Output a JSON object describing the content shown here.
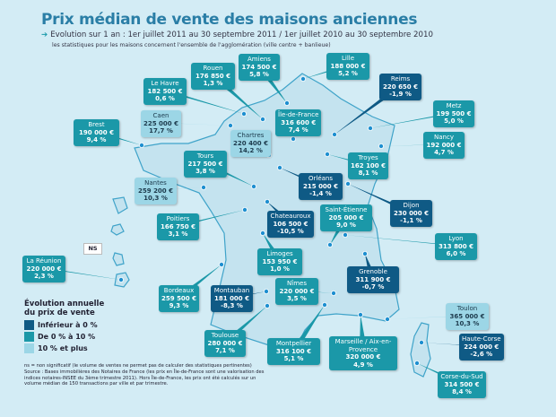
{
  "header": {
    "title": "Prix médian de vente des maisons anciennes",
    "subtitle": "Evolution sur 1 an : 1er juillet 2011 au 30 septembre 2011 / 1er juillet 2010 au 30 septembre 2010",
    "subtitle2": "les statistiques pour les maisons concernent l'ensemble de l'agglomération (ville centre + banlieue)"
  },
  "colors": {
    "negative": "#0f5a85",
    "low": "#1b98a8",
    "high": "#9cd6e6",
    "background": "#d3ecf5"
  },
  "cities": [
    {
      "name": "Lille",
      "price": "188 000 €",
      "change": "5,2 %",
      "category": "low"
    },
    {
      "name": "Amiens",
      "price": "174 500 €",
      "change": "5,8 %",
      "category": "low"
    },
    {
      "name": "Rouen",
      "price": "176 850 €",
      "change": "1,3 %",
      "category": "low"
    },
    {
      "name": "Le Havre",
      "price": "182 500 €",
      "change": "0,6 %",
      "category": "low"
    },
    {
      "name": "Caen",
      "price": "225 000 €",
      "change": "17,7 %",
      "category": "high"
    },
    {
      "name": "Brest",
      "price": "190 000 €",
      "change": "9,4 %",
      "category": "low"
    },
    {
      "name": "Chartres",
      "price": "220 400 €",
      "change": "14,2 %",
      "category": "high"
    },
    {
      "name": "Île-de-France",
      "price": "316 600 €",
      "change": "7,4 %",
      "category": "low"
    },
    {
      "name": "Tours",
      "price": "217 500 €",
      "change": "3,8 %",
      "category": "low"
    },
    {
      "name": "Reims",
      "price": "220 650 €",
      "change": "-1,9 %",
      "category": "neg"
    },
    {
      "name": "Metz",
      "price": "199 500 €",
      "change": "5,0 %",
      "category": "low"
    },
    {
      "name": "Nancy",
      "price": "192 000 €",
      "change": "4,7 %",
      "category": "low"
    },
    {
      "name": "Troyes",
      "price": "162 100 €",
      "change": "8,1 %",
      "category": "low"
    },
    {
      "name": "Orléans",
      "price": "215 000 €",
      "change": "-1,4 %",
      "category": "neg"
    },
    {
      "name": "Dijon",
      "price": "230 000 €",
      "change": "-1,1 %",
      "category": "neg"
    },
    {
      "name": "Saint-Étienne",
      "price": "205 000 €",
      "change": "9,0 %",
      "category": "low"
    },
    {
      "name": "Chateauroux",
      "price": "106 500 €",
      "change": "-10,5 %",
      "category": "neg"
    },
    {
      "name": "Lyon",
      "price": "313 800 €",
      "change": "6,0 %",
      "category": "low"
    },
    {
      "name": "Limoges",
      "price": "153 950 €",
      "change": "1,0 %",
      "category": "low"
    },
    {
      "name": "Grenoble",
      "price": "311 900 €",
      "change": "-0,7 %",
      "category": "neg"
    },
    {
      "name": "Nantes",
      "price": "259 200 €",
      "change": "10,3 %",
      "category": "high"
    },
    {
      "name": "Poitiers",
      "price": "166 750 €",
      "change": "3,1 %",
      "category": "low"
    },
    {
      "name": "La Réunion",
      "price": "220 000 €",
      "change": "2,3 %",
      "category": "low"
    },
    {
      "name": "Bordeaux",
      "price": "259 500 €",
      "change": "9,3 %",
      "category": "low"
    },
    {
      "name": "Montauban",
      "price": "181 000 €",
      "change": "-8,3 %",
      "category": "neg"
    },
    {
      "name": "Nîmes",
      "price": "220 000 €",
      "change": "3,5 %",
      "category": "low"
    },
    {
      "name": "Toulouse",
      "price": "280 000 €",
      "change": "7,1 %",
      "category": "low"
    },
    {
      "name": "Montpellier",
      "price": "316 100 €",
      "change": "5,1 %",
      "category": "low"
    },
    {
      "name": "Marseille / Aix-en-Provence",
      "price": "320 000 €",
      "change": "4,9 %",
      "category": "low"
    },
    {
      "name": "Toulon",
      "price": "365 000 €",
      "change": "10,3 %",
      "category": "high"
    },
    {
      "name": "Haute-Corse",
      "price": "224 000 €",
      "change": "-2,6 %",
      "category": "neg"
    },
    {
      "name": "Corse-du-Sud",
      "price": "314 500 €",
      "change": "8,4 %",
      "category": "low"
    }
  ],
  "ns_label": "NS",
  "legend": {
    "title": "Évolution annuelle du prix de vente",
    "items": [
      "Inférieur à 0 %",
      "De 0 % à 10 %",
      "10 % et plus"
    ]
  },
  "notes": {
    "ns": "ns = non significatif (le volume de ventes ne permet pas de calculer des statistiques pertinentes)",
    "source": "Source : Bases immobilières des Notaires de France (les prix en Île-de-France sont une valorisation des indices notaires-INSEE du 3ème trimestre 2011). Hors Île-de-France, les prix ont été calculés sur un volume médian de 150 transactions par ville et par trimestre."
  }
}
